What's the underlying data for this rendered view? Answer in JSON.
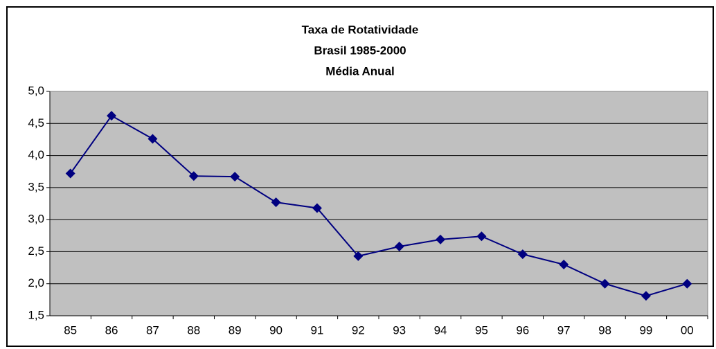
{
  "chart_data": {
    "type": "line",
    "title": "Taxa de Rotatividade",
    "subtitle": [
      "Brasil 1985-2000",
      "Média Anual"
    ],
    "categories": [
      "85",
      "86",
      "87",
      "88",
      "89",
      "90",
      "91",
      "92",
      "93",
      "94",
      "95",
      "96",
      "97",
      "98",
      "99",
      "00"
    ],
    "series": [
      {
        "color": "#000080",
        "values": [
          3.72,
          4.62,
          4.26,
          3.68,
          3.67,
          3.27,
          3.18,
          2.43,
          2.58,
          2.69,
          2.74,
          2.46,
          2.3,
          2.0,
          1.81,
          2.0
        ]
      }
    ],
    "ylim": [
      1.5,
      5.0
    ],
    "yticks": [
      {
        "value": 1.5,
        "label": "1,5"
      },
      {
        "value": 2.0,
        "label": "2,0"
      },
      {
        "value": 2.5,
        "label": "2,5"
      },
      {
        "value": 3.0,
        "label": "3,0"
      },
      {
        "value": 3.5,
        "label": "3,5"
      },
      {
        "value": 4.0,
        "label": "4,0"
      },
      {
        "value": 4.5,
        "label": "4,5"
      },
      {
        "value": 5.0,
        "label": "5,0"
      }
    ],
    "grid": true,
    "plot_background": "#c0c0c0"
  }
}
